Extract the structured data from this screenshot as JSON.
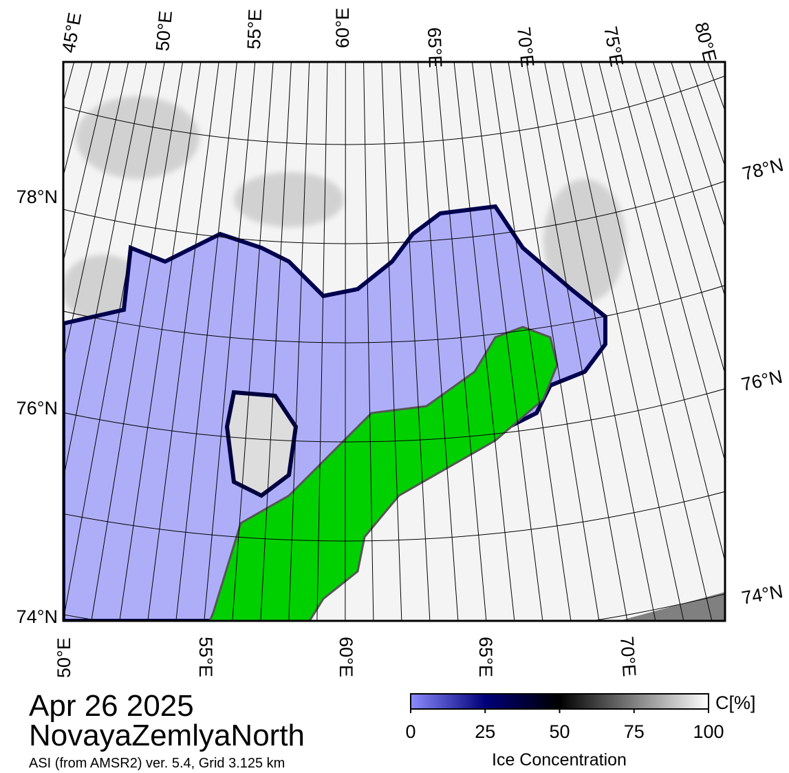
{
  "map": {
    "top_lon_labels": [
      "45°E",
      "50°E",
      "55°E",
      "60°E",
      "65°E",
      "70°E",
      "75°E",
      "80°E"
    ],
    "bottom_lon_labels": [
      "50°E",
      "55°E",
      "60°E",
      "65°E",
      "70°E"
    ],
    "left_lat_labels": [
      "78°N",
      "76°N",
      "74°N"
    ],
    "right_lat_labels": [
      "78°N",
      "76°N",
      "74°N"
    ]
  },
  "date": "Apr 26 2025",
  "region": "NovayaZemlyaNorth",
  "source": "ASI (from AMSR2) ver. 5.4,  Grid 3.125 km",
  "colorbar": {
    "lim": [
      0,
      100
    ],
    "ticks": [
      0,
      25,
      50,
      75,
      100
    ],
    "unit": "C[%]",
    "label": "Ice Concentration"
  }
}
